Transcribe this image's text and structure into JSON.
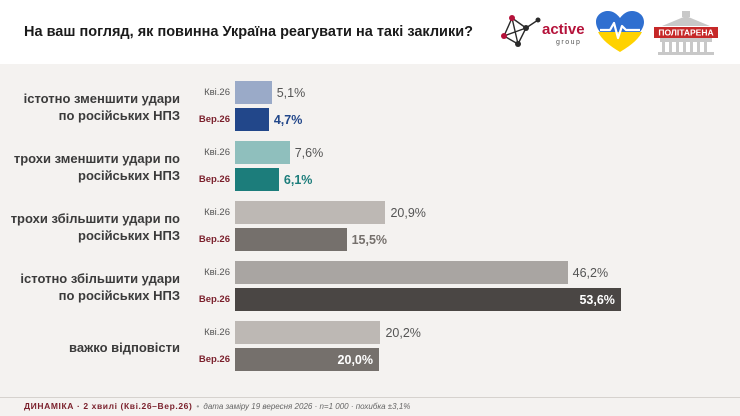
{
  "header": {
    "title": "На ваш погляд, як повинна Україна реагувати на такі заклики?",
    "logo_active_name": "active",
    "logo_active_sub": "group",
    "logo_poli": "ПОЛІТАРЕНА"
  },
  "chart_data": {
    "type": "bar",
    "orientation": "horizontal",
    "categories": [
      "істотно зменшити удари по російських НПЗ",
      "трохи зменшити удари по російських НПЗ",
      "трохи збільшити удари по російських НПЗ",
      "істотно збільшити удари по російських НПЗ",
      "важко відповісти"
    ],
    "series": [
      {
        "name": "Кві.26",
        "values": [
          5.1,
          7.6,
          20.9,
          46.2,
          20.2
        ]
      },
      {
        "name": "Вер.26",
        "values": [
          4.7,
          6.1,
          15.5,
          53.6,
          20.0
        ]
      }
    ],
    "value_labels": [
      [
        "5,1%",
        "4,7%"
      ],
      [
        "7,6%",
        "6,1%"
      ],
      [
        "20,9%",
        "15,5%"
      ],
      [
        "46,2%",
        "53,6%"
      ],
      [
        "20,2%",
        "20,0%"
      ]
    ],
    "colors": [
      [
        "#9aaac8",
        "#22478a"
      ],
      [
        "#8fbfbd",
        "#1c7d7b"
      ],
      [
        "#bdb8b4",
        "#75706c"
      ],
      [
        "#a9a5a2",
        "#4a4644"
      ],
      [
        "#bdb8b4",
        "#75706c"
      ]
    ],
    "xlim": [
      0,
      60
    ]
  },
  "footer": {
    "dynamics": "ДИНАМІКА · 2 хвилі (Кві.26–Вер.26)",
    "separator": "•",
    "meta": "дата заміру 19 вересня 2026 · n=1 000 · похибка ±3,1%"
  }
}
